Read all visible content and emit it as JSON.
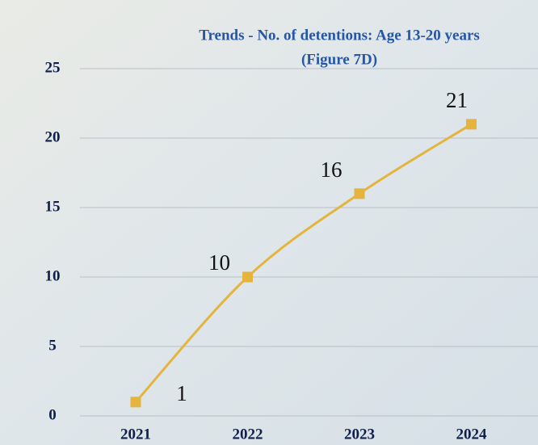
{
  "chart_data": {
    "type": "line",
    "title": "Trends - No. of detentions: Age 13-20 years",
    "subtitle": "(Figure 7D)",
    "categories": [
      "2021",
      "2022",
      "2023",
      "2024"
    ],
    "values": [
      1,
      10,
      16,
      21
    ],
    "color": "#e4b43c",
    "ylim": [
      0,
      25
    ],
    "yticks": [
      0,
      5,
      10,
      15,
      20,
      25
    ],
    "grid": true
  }
}
